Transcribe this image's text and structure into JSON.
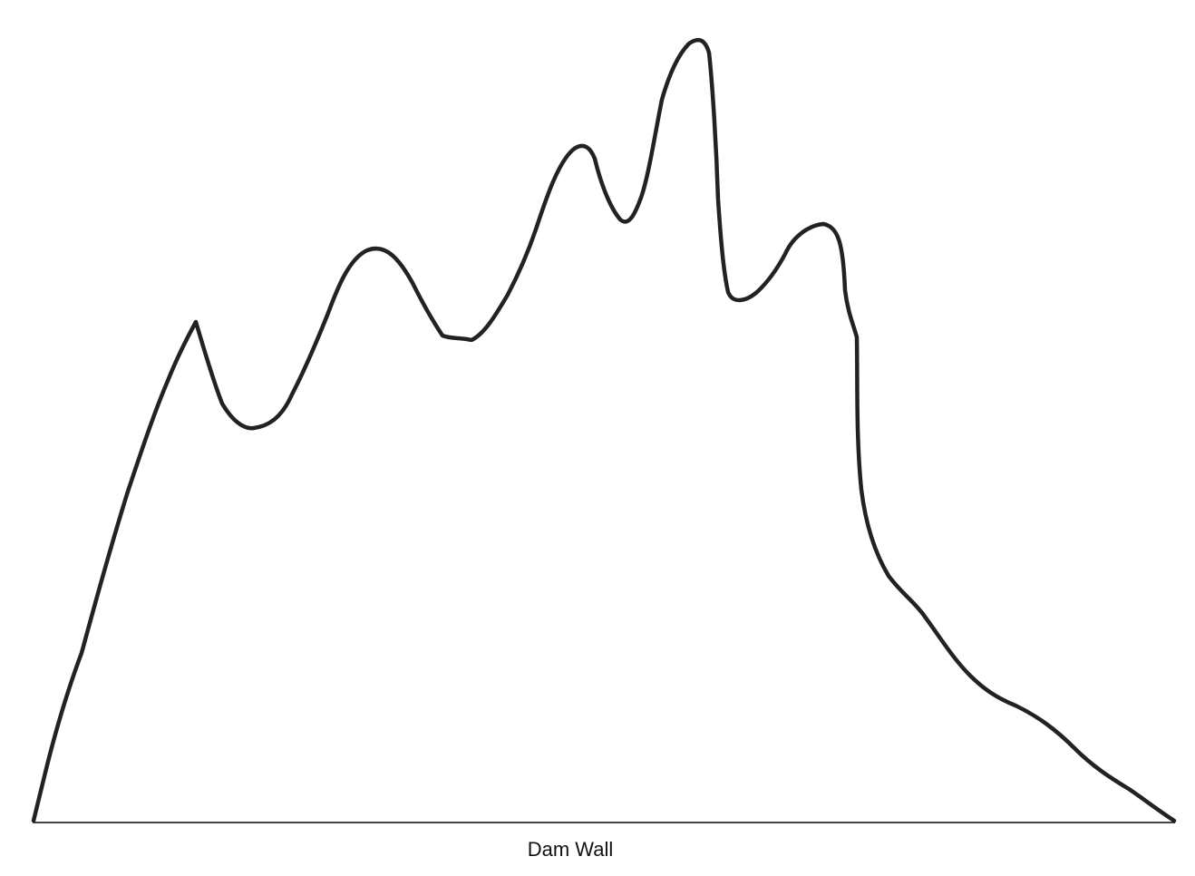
{
  "diagram": {
    "base_label": "Dam Wall",
    "colors": {
      "outline": "#222222",
      "baseline": "#444444",
      "background": "#ffffff"
    }
  }
}
